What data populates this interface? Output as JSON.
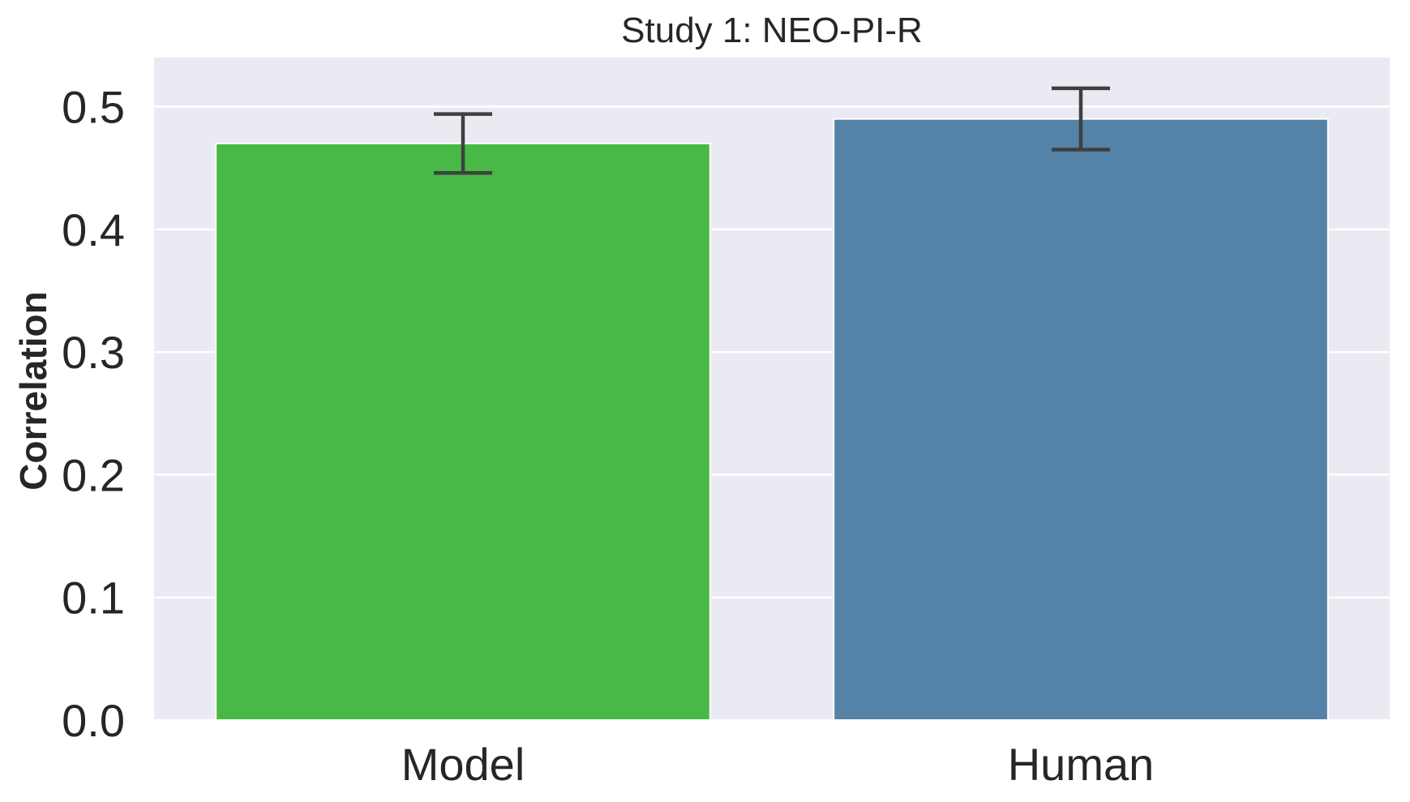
{
  "chart_data": {
    "type": "bar",
    "title": "Study 1: NEO-PI-R",
    "xlabel": "",
    "ylabel": "Correlation",
    "categories": [
      "Model",
      "Human"
    ],
    "values": [
      0.47,
      0.49
    ],
    "error_bars": [
      {
        "low": 0.446,
        "high": 0.494
      },
      {
        "low": 0.465,
        "high": 0.515
      }
    ],
    "colors": [
      "#48b947",
      "#5582a7"
    ],
    "ylim": [
      0,
      0.54
    ],
    "yticks": [
      "0.0",
      "0.1",
      "0.2",
      "0.3",
      "0.4",
      "0.5"
    ],
    "grid": true,
    "background": "#eaeaf2",
    "grid_color": "#ffffff",
    "errorbar_color": "#3f3f3f",
    "text_color": "#262626"
  }
}
